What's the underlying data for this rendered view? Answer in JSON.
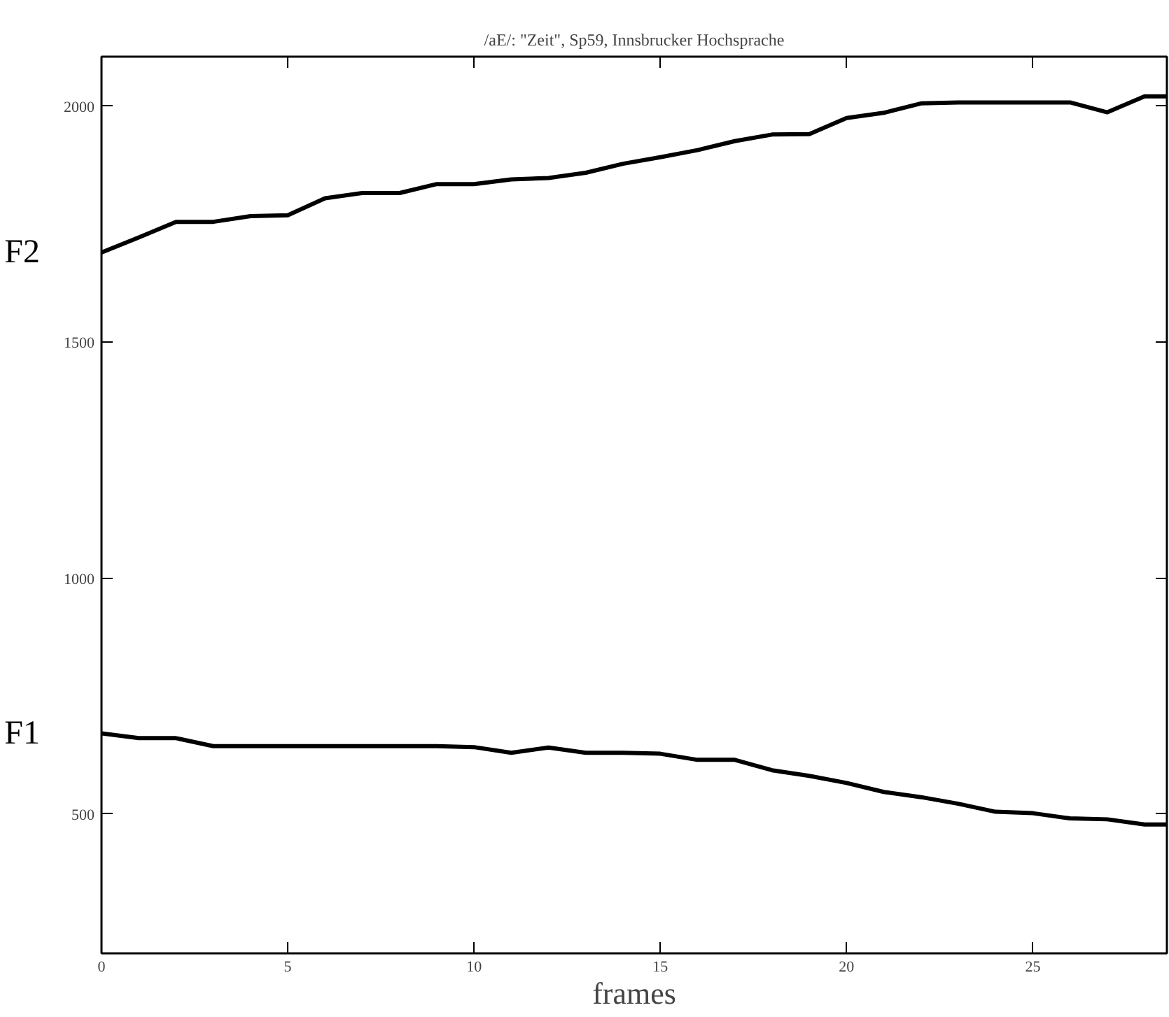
{
  "chart_data": {
    "type": "line",
    "title": "/aE/: \"Zeit\", Sp59, Innsbrucker Hochsprache",
    "xlabel": "frames",
    "x": [
      0,
      1,
      2,
      3,
      4,
      5,
      6,
      7,
      8,
      9,
      10,
      11,
      12,
      13,
      14,
      15,
      16,
      17,
      18,
      19,
      20,
      21,
      22,
      23,
      24,
      25,
      26,
      27,
      28,
      28.6
    ],
    "series": [
      {
        "name": "F2",
        "color": "#000000",
        "values": [
          1690,
          1722,
          1755,
          1755,
          1767,
          1769,
          1805,
          1816,
          1816,
          1835,
          1835,
          1845,
          1848,
          1859,
          1878,
          1892,
          1907,
          1926,
          1940,
          1941,
          1975,
          1986,
          2006,
          2008,
          2008,
          2008,
          2008,
          1987,
          2021,
          2021
        ]
      },
      {
        "name": "F1",
        "color": "#000000",
        "values": [
          671,
          661,
          661,
          644,
          644,
          644,
          644,
          644,
          644,
          644,
          642,
          630,
          641,
          630,
          630,
          628,
          615,
          615,
          593,
          581,
          566,
          547,
          536,
          522,
          505,
          502,
          491,
          489,
          478,
          478
        ]
      }
    ],
    "xlim": [
      0,
      28.6
    ],
    "ylim": [
      205,
      2105
    ],
    "xticks": [
      0,
      5,
      10,
      15,
      20,
      25
    ],
    "yticks": [
      500,
      1000,
      1500,
      2000
    ],
    "grid": false,
    "legend": false,
    "line_style": "solid"
  }
}
